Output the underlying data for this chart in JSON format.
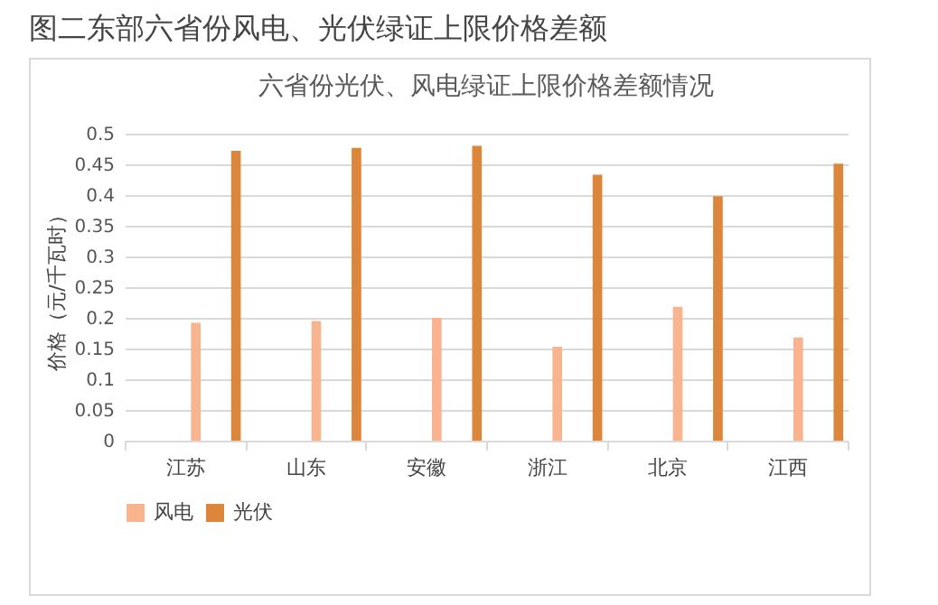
{
  "chart_data": {
    "type": "bar",
    "title": "图二东部六省份风电、光伏绿证上限价格差额",
    "subtitle": "六省份光伏、风电绿证上限价格差额情况",
    "ylabel": "价格（元/千瓦时）",
    "categories": [
      "江苏",
      "山东",
      "安徽",
      "浙江",
      "北京",
      "江西"
    ],
    "series": [
      {
        "name": "风电",
        "color": "#f8b48f",
        "values": [
          0.192,
          0.195,
          0.2,
          0.153,
          0.218,
          0.168
        ]
      },
      {
        "name": "光伏",
        "color": "#dc863b",
        "values": [
          0.472,
          0.477,
          0.48,
          0.433,
          0.398,
          0.451
        ]
      }
    ],
    "ylim": [
      0,
      0.5
    ],
    "yticks": [
      0,
      0.05,
      0.1,
      0.15,
      0.2,
      0.25,
      0.3,
      0.35,
      0.4,
      0.45,
      0.5
    ],
    "grid": "y",
    "legend": "bottom"
  }
}
